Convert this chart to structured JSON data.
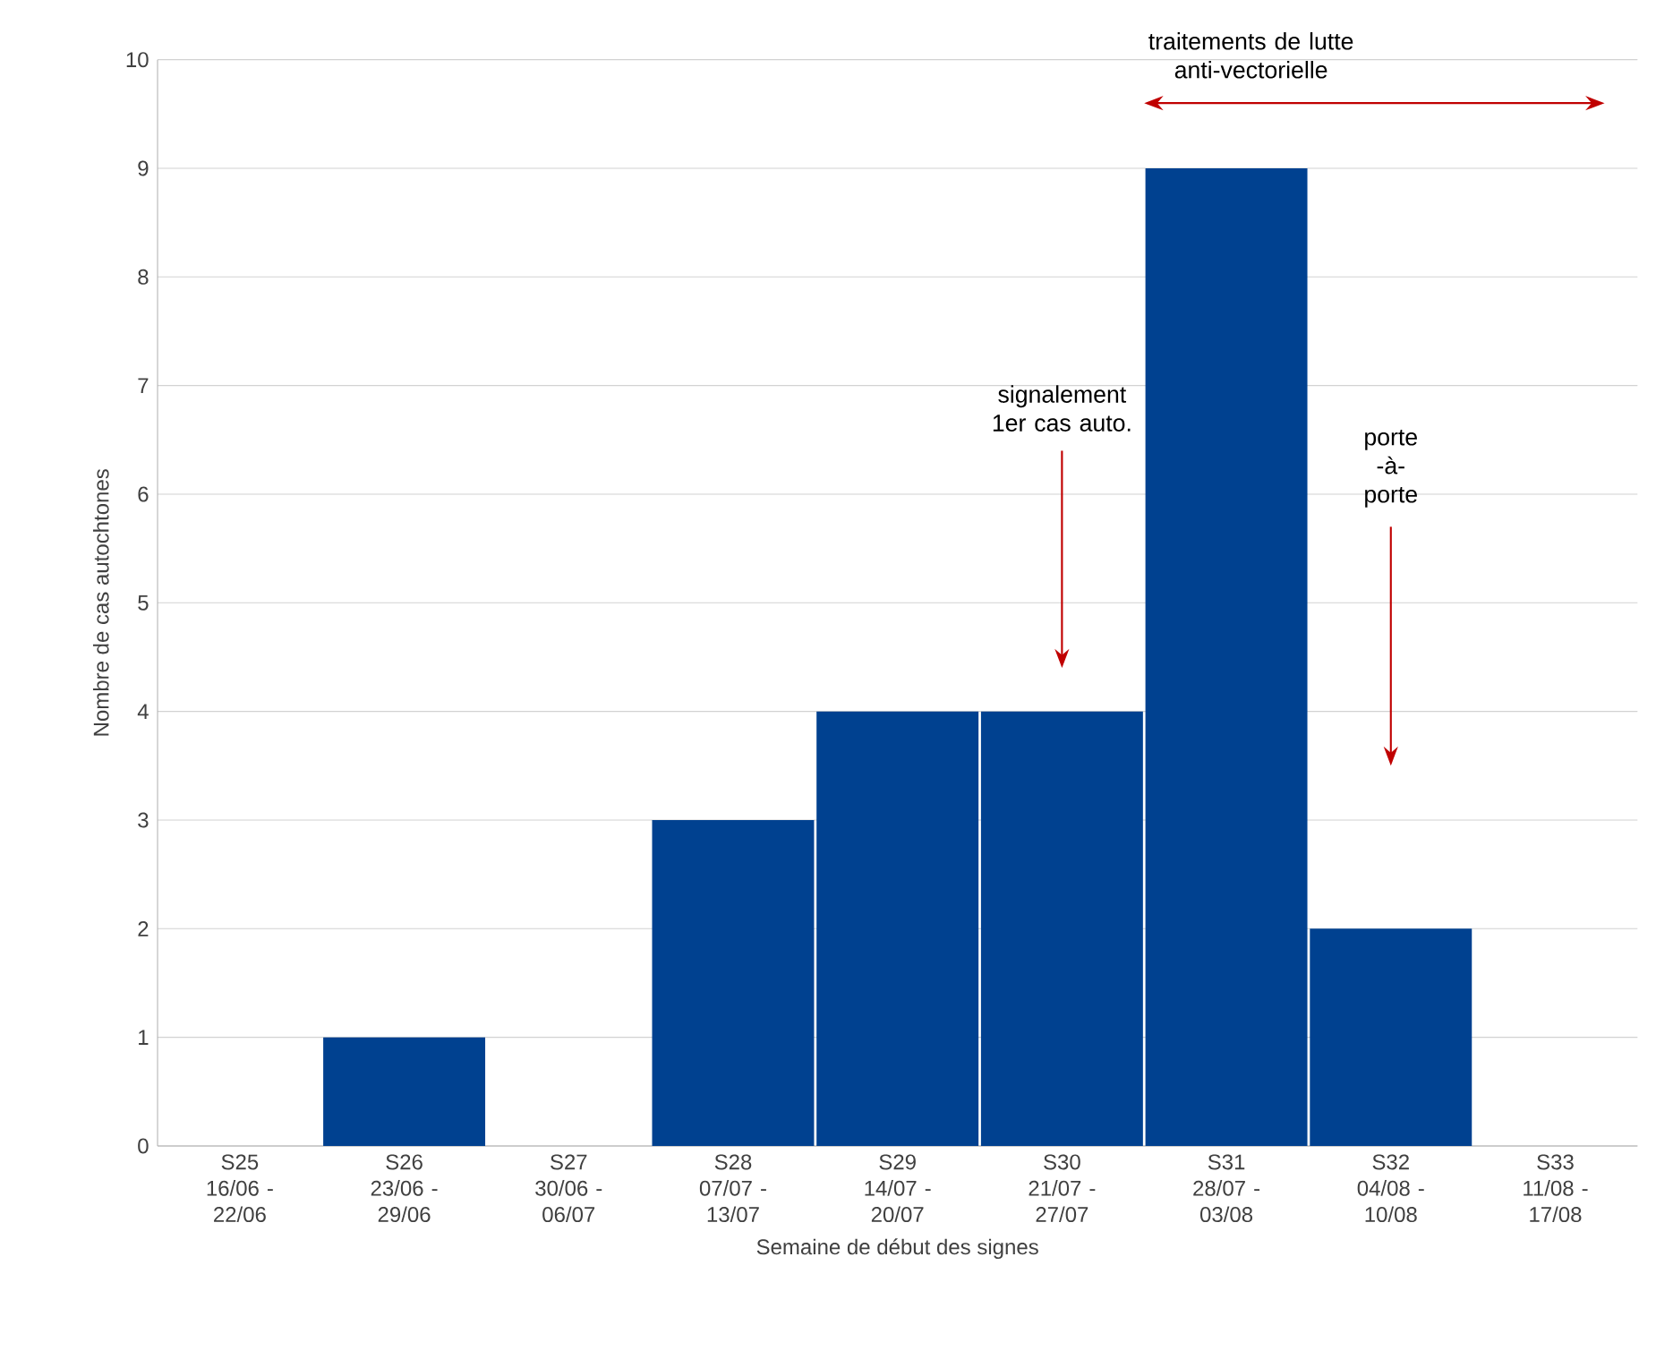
{
  "chart_data": {
    "type": "bar",
    "xlabel": "Semaine de début des signes",
    "ylabel": "Nombre de cas autochtones",
    "categories": [
      "S25 16/06 - 22/06",
      "S26 23/06 - 29/06",
      "S27 30/06 - 06/07",
      "S28 07/07 - 13/07",
      "S29 14/07 - 20/07",
      "S30 21/07 - 27/07",
      "S31 28/07 - 03/08",
      "S32 04/08 - 10/08",
      "S33 11/08 - 17/08"
    ],
    "values": [
      0,
      1,
      0,
      3,
      4,
      4,
      9,
      2,
      0
    ],
    "color": "#004190",
    "ylim": [
      0,
      10
    ],
    "yticks": [
      0,
      1,
      2,
      3,
      4,
      5,
      6,
      7,
      8,
      9,
      10
    ],
    "grid": "y",
    "annotations": [
      "traitements de lutte anti-vectorielle",
      "signalement 1er cas auto.",
      "porte -à- porte"
    ]
  }
}
